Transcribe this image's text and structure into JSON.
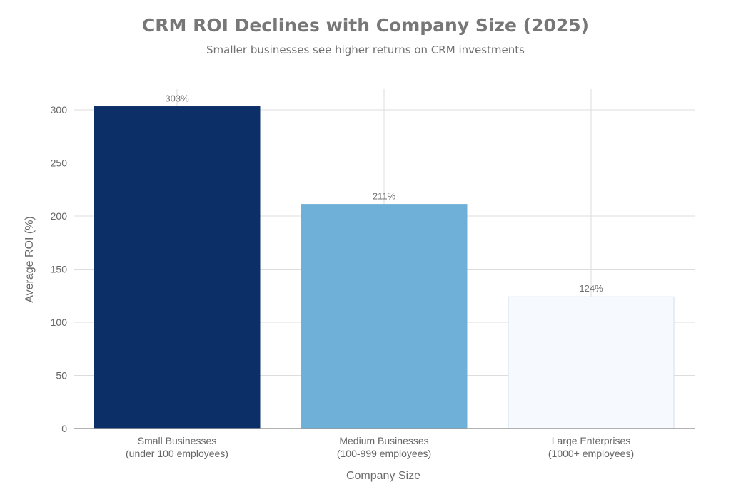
{
  "chart_data": {
    "type": "bar",
    "title": "CRM ROI Declines with Company Size (2025)",
    "subtitle": "Smaller businesses see higher returns on CRM investments",
    "xlabel": "Company Size",
    "ylabel": "Average ROI (%)",
    "categories": [
      [
        "Small Businesses",
        "(under 100 employees)"
      ],
      [
        "Medium Businesses",
        "(100-999 employees)"
      ],
      [
        "Large Enterprises",
        "(1000+ employees)"
      ]
    ],
    "values": [
      303,
      211,
      124
    ],
    "data_labels": [
      "303%",
      "211%",
      "124%"
    ],
    "bar_colors": [
      "#0b2f66",
      "#6fb0d8",
      "#f6faff"
    ],
    "ylim": [
      0,
      320
    ],
    "yticks": [
      0,
      50,
      100,
      150,
      200,
      250,
      300
    ],
    "grid": true,
    "legend": "none"
  }
}
